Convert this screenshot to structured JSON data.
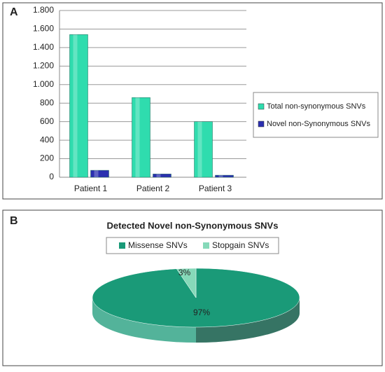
{
  "chart_data": [
    {
      "type": "bar",
      "panel": "A",
      "categories": [
        "Patient 1",
        "Patient 2",
        "Patient 3"
      ],
      "series": [
        {
          "name": "Total non-synonymous SNVs",
          "color": "#2fdcae",
          "values": [
            1540,
            860,
            600
          ]
        },
        {
          "name": "Novel non-Synonymous SNVs",
          "color": "#2b2fb0",
          "values": [
            75,
            35,
            22
          ]
        }
      ],
      "ylim": [
        0,
        1800
      ],
      "yticks": [
        0,
        200,
        400,
        600,
        800,
        {
          "value": 1000,
          "label": "1.000"
        },
        {
          "value": 1200,
          "label": "1.200"
        },
        {
          "value": 1400,
          "label": "1.400"
        },
        {
          "value": 1600,
          "label": "1.600"
        },
        {
          "value": 1800,
          "label": "1.800"
        }
      ],
      "grid": true,
      "legend": "right"
    },
    {
      "type": "pie",
      "panel": "B",
      "title": "Detected Novel non-Synonymous SNVs",
      "categories": [
        "Missense SNVs",
        "Stopgain SNVs"
      ],
      "values": [
        97,
        3
      ],
      "value_labels": [
        "97%",
        "3%"
      ],
      "colors": [
        "#1a9a78",
        "#86d9b9"
      ],
      "legend": "top"
    }
  ]
}
